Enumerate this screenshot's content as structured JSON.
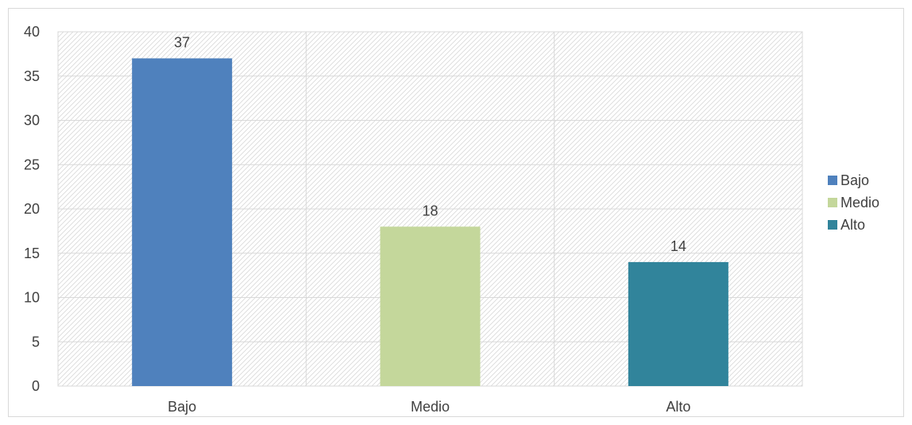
{
  "chart_data": {
    "type": "bar",
    "categories": [
      "Bajo",
      "Medio",
      "Alto"
    ],
    "values": [
      37,
      18,
      14
    ],
    "colors": [
      "#4f81bd",
      "#c4d79b",
      "#31849b"
    ],
    "ylim": [
      0,
      40
    ],
    "yticks": [
      0,
      5,
      10,
      15,
      20,
      25,
      30,
      35,
      40
    ],
    "grid": true,
    "legend": {
      "placement": "right",
      "entries": [
        "Bajo",
        "Medio",
        "Alto"
      ]
    },
    "data_labels": true
  }
}
